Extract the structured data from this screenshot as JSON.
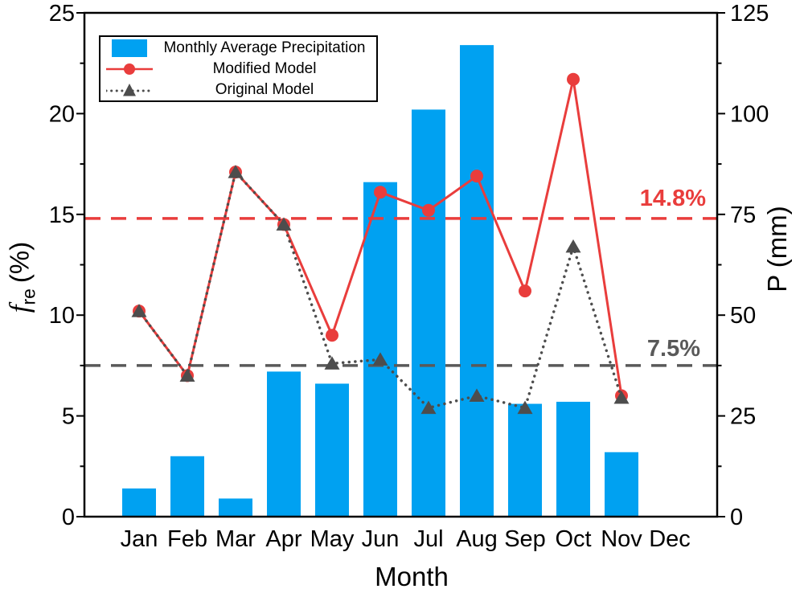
{
  "chart_data": {
    "type": "bar+line",
    "xlabel": "Month",
    "categories": [
      "Jan",
      "Feb",
      "Mar",
      "Apr",
      "May",
      "Jun",
      "Jul",
      "Aug",
      "Sep",
      "Oct",
      "Nov",
      "Dec"
    ],
    "left_axis": {
      "label_f": "f",
      "label_sub": "re",
      "label_unit": "(%)",
      "min": 0,
      "max": 25,
      "major_ticks": [
        0,
        5,
        10,
        15,
        20,
        25
      ],
      "minor_ticks": [
        2.5,
        7.5,
        12.5,
        17.5,
        22.5
      ]
    },
    "right_axis": {
      "label": "P (mm)",
      "min": 0,
      "max": 125,
      "major_ticks": [
        0,
        25,
        50,
        75,
        100,
        125
      ],
      "minor_ticks": [
        12.5,
        37.5,
        62.5,
        87.5,
        112.5
      ]
    },
    "series": [
      {
        "name": "Monthly Average Precipitation",
        "type": "bar",
        "axis": "right",
        "color": "#00A1F1",
        "values": [
          7,
          15,
          4.5,
          36,
          33,
          83,
          101,
          117,
          28,
          28.5,
          16,
          0
        ]
      },
      {
        "name": "Modified Model",
        "type": "line",
        "axis": "left",
        "color": "#E93D3C",
        "marker": "circle",
        "values": [
          10.2,
          7.0,
          17.1,
          14.5,
          9.0,
          16.1,
          15.2,
          16.9,
          11.2,
          21.7,
          6.0,
          null
        ]
      },
      {
        "name": "Original  Model",
        "type": "dotted-line",
        "axis": "left",
        "color": "#4D4D4D",
        "marker": "triangle",
        "values": [
          10.2,
          7.0,
          17.1,
          14.5,
          7.6,
          7.8,
          5.4,
          6.0,
          5.4,
          13.4,
          5.9,
          null
        ]
      }
    ],
    "reference_lines": [
      {
        "label": "14.8%",
        "value": 14.8,
        "color": "#E93D3C",
        "style": "dashed"
      },
      {
        "label": "7.5%",
        "value": 7.5,
        "color": "#595959",
        "style": "dashed"
      }
    ],
    "grid": "off",
    "legend_position": "top-left"
  }
}
